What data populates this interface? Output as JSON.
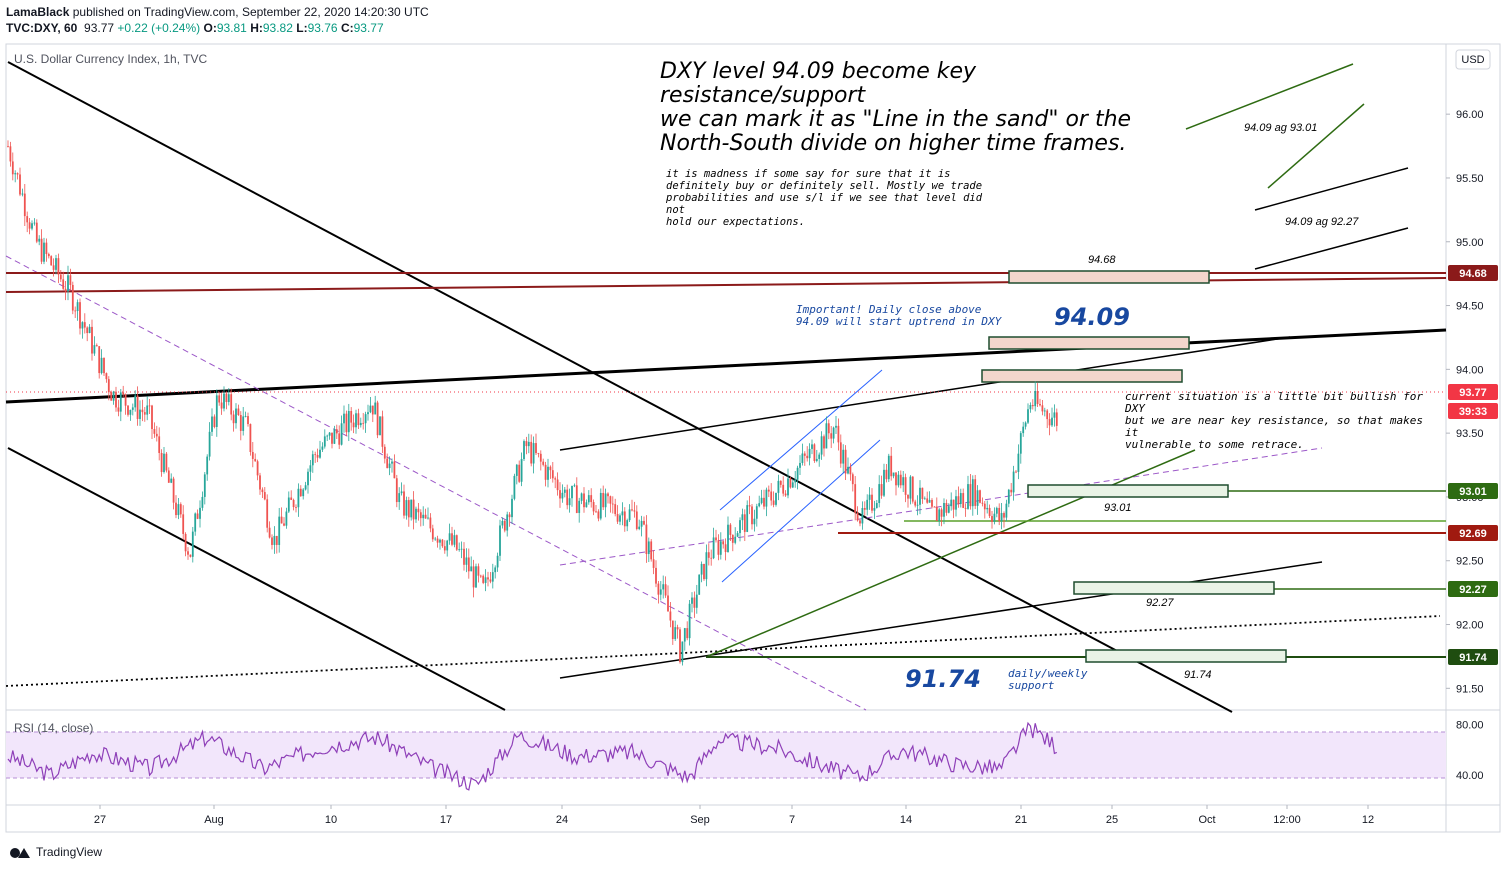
{
  "header": {
    "author": "LamaBlack",
    "published": "published on TradingView.com, September 22, 2020 14:20:30 UTC",
    "symbol": "TVC:DXY, 60",
    "last": "93.77",
    "change": "+0.22 (+0.24%)",
    "open_label": "O:",
    "open": "93.81",
    "high_label": "H:",
    "high": "93.82",
    "low_label": "L:",
    "low": "93.76",
    "close_label": "C:",
    "close": "93.77"
  },
  "chart_title": "U.S. Dollar Currency Index, 1h, TVC",
  "currency_button": "USD",
  "annotations": {
    "headline": [
      "DXY level 94.09 become key",
      "resistance/support",
      "we can mark it as \"Line in the sand\" or the",
      "North-South divide on higher time frames."
    ],
    "body": [
      "it is madness if some say for sure that it is",
      "definitely buy or definitely sell. Mostly we trade",
      "probabilities and use s/l if we see that level did not",
      "hold our expectations."
    ],
    "important": [
      "Important! Daily close above",
      "94.09 will start uptrend in DXY"
    ],
    "current": [
      "current situation is a little bit bullish for DXY",
      "but we are near key resistance, so that makes it",
      "vulnerable to some retrace."
    ],
    "support": [
      "daily/weekly",
      "support"
    ],
    "big_level_1": "94.09",
    "big_level_2": "91.74",
    "zone_labels": [
      "94.68",
      "93.01",
      "92.27",
      "91.74"
    ],
    "scenario_1": "94.09 ag 93.01",
    "scenario_2": "94.09 ag 92.27"
  },
  "price_badges": [
    {
      "value": "94.68",
      "color": "#8b1a1a"
    },
    {
      "value": "93.77",
      "color": "#f23645"
    },
    {
      "value": "39:33",
      "color": "#f23645"
    },
    {
      "value": "93.01",
      "color": "#2e6b12"
    },
    {
      "value": "92.69",
      "color": "#a01a10"
    },
    {
      "value": "92.27",
      "color": "#2e6b12"
    },
    {
      "value": "91.74",
      "color": "#1f4d10"
    }
  ],
  "rsi": {
    "label": "RSI (14, close)",
    "ticks": [
      "80.00",
      "40.00"
    ]
  },
  "footer": {
    "brand": "TradingView"
  },
  "chart_data": {
    "type": "candlestick",
    "title": "U.S. Dollar Currency Index, 1h, TVC",
    "x_ticks": [
      "27",
      "Aug",
      "10",
      "17",
      "24",
      "Sep",
      "7",
      "14",
      "21",
      "25",
      "Oct",
      "12:00",
      "12"
    ],
    "y_ticks": [
      "96.00",
      "95.50",
      "95.00",
      "94.50",
      "94.00",
      "93.50",
      "93.00",
      "92.50",
      "92.00",
      "91.50"
    ],
    "ylim": [
      91.33,
      96.55
    ],
    "key_levels": [
      94.68,
      94.09,
      93.77,
      93.01,
      92.69,
      92.27,
      91.74
    ],
    "close_path": [
      {
        "x": 0.0,
        "y": 95.75
      },
      {
        "x": 0.02,
        "y": 95.0
      },
      {
        "x": 0.045,
        "y": 94.6
      },
      {
        "x": 0.075,
        "y": 93.8
      },
      {
        "x": 0.1,
        "y": 93.65
      },
      {
        "x": 0.13,
        "y": 92.55
      },
      {
        "x": 0.15,
        "y": 93.8
      },
      {
        "x": 0.17,
        "y": 93.55
      },
      {
        "x": 0.19,
        "y": 92.65
      },
      {
        "x": 0.22,
        "y": 93.35
      },
      {
        "x": 0.26,
        "y": 93.75
      },
      {
        "x": 0.28,
        "y": 92.95
      },
      {
        "x": 0.32,
        "y": 92.6
      },
      {
        "x": 0.34,
        "y": 92.25
      },
      {
        "x": 0.37,
        "y": 93.4
      },
      {
        "x": 0.4,
        "y": 93.0
      },
      {
        "x": 0.45,
        "y": 92.85
      },
      {
        "x": 0.48,
        "y": 91.8
      },
      {
        "x": 0.5,
        "y": 92.55
      },
      {
        "x": 0.55,
        "y": 93.05
      },
      {
        "x": 0.59,
        "y": 93.55
      },
      {
        "x": 0.61,
        "y": 92.8
      },
      {
        "x": 0.63,
        "y": 93.25
      },
      {
        "x": 0.66,
        "y": 92.85
      },
      {
        "x": 0.69,
        "y": 93.05
      },
      {
        "x": 0.71,
        "y": 92.8
      },
      {
        "x": 0.73,
        "y": 93.75
      },
      {
        "x": 0.75,
        "y": 93.6
      }
    ],
    "rsi_path": [
      {
        "x": 0.0,
        "y": 55
      },
      {
        "x": 0.03,
        "y": 40
      },
      {
        "x": 0.06,
        "y": 58
      },
      {
        "x": 0.1,
        "y": 45
      },
      {
        "x": 0.14,
        "y": 70
      },
      {
        "x": 0.18,
        "y": 45
      },
      {
        "x": 0.22,
        "y": 62
      },
      {
        "x": 0.26,
        "y": 70
      },
      {
        "x": 0.3,
        "y": 45
      },
      {
        "x": 0.33,
        "y": 32
      },
      {
        "x": 0.36,
        "y": 72
      },
      {
        "x": 0.4,
        "y": 55
      },
      {
        "x": 0.44,
        "y": 58
      },
      {
        "x": 0.48,
        "y": 38
      },
      {
        "x": 0.5,
        "y": 68
      },
      {
        "x": 0.54,
        "y": 62
      },
      {
        "x": 0.58,
        "y": 45
      },
      {
        "x": 0.6,
        "y": 38
      },
      {
        "x": 0.63,
        "y": 60
      },
      {
        "x": 0.67,
        "y": 48
      },
      {
        "x": 0.7,
        "y": 45
      },
      {
        "x": 0.72,
        "y": 78
      },
      {
        "x": 0.74,
        "y": 62
      }
    ]
  }
}
